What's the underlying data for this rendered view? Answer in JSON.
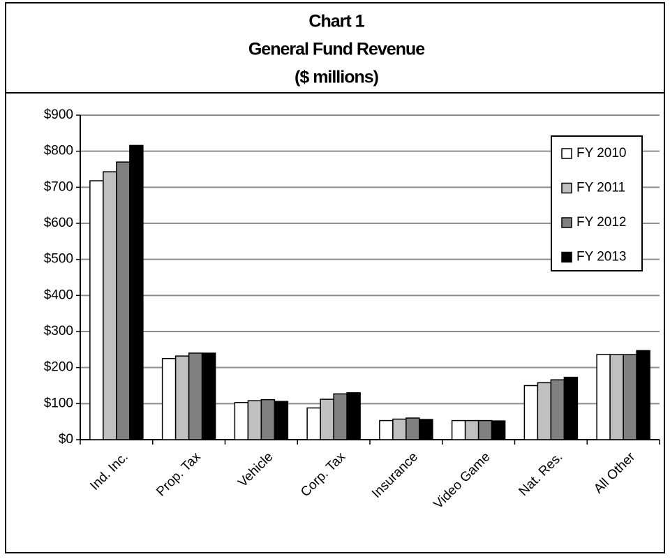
{
  "chart_data": {
    "type": "bar",
    "title": [
      "Chart 1",
      "General Fund Revenue",
      "($ millions)"
    ],
    "categories": [
      "Ind. Inc.",
      "Prop. Tax",
      "Vehicle",
      "Corp. Tax",
      "Insurance",
      "Video Game",
      "Nat. Res.",
      "All Other"
    ],
    "series": [
      {
        "name": "FY 2010",
        "color": "#ffffff",
        "values": [
          718,
          225,
          103,
          88,
          53,
          53,
          150,
          236
        ]
      },
      {
        "name": "FY 2011",
        "color": "#c0c0c0",
        "values": [
          743,
          232,
          108,
          112,
          57,
          53,
          158,
          236
        ]
      },
      {
        "name": "FY 2012",
        "color": "#808080",
        "values": [
          770,
          240,
          111,
          127,
          60,
          53,
          166,
          236
        ]
      },
      {
        "name": "FY 2013",
        "color": "#000000",
        "values": [
          816,
          240,
          106,
          130,
          56,
          52,
          173,
          247
        ]
      }
    ],
    "ylim": [
      0,
      900
    ],
    "yticks": [
      {
        "value": 0,
        "label": "$0"
      },
      {
        "value": 100,
        "label": "$100"
      },
      {
        "value": 200,
        "label": "$200"
      },
      {
        "value": 300,
        "label": "$300"
      },
      {
        "value": 400,
        "label": "$400"
      },
      {
        "value": 500,
        "label": "$500"
      },
      {
        "value": 600,
        "label": "$600"
      },
      {
        "value": 700,
        "label": "$700"
      },
      {
        "value": 800,
        "label": "$800"
      },
      {
        "value": 900,
        "label": "$900"
      }
    ],
    "grid": true,
    "legend": "upper right"
  }
}
